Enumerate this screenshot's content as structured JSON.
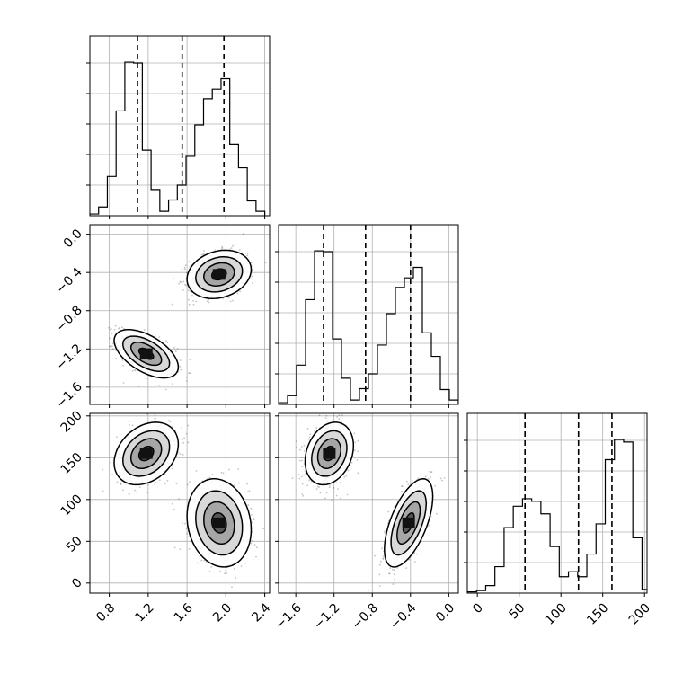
{
  "chart_data": {
    "type": "corner",
    "grid": true,
    "params": [
      {
        "id": "p1",
        "range": [
          0.6,
          2.45
        ],
        "ticks": [
          "0.8",
          "1.2",
          "1.6",
          "2.0",
          "2.4"
        ],
        "tick_values": [
          0.8,
          1.2,
          1.6,
          2.0,
          2.4
        ]
      },
      {
        "id": "p2",
        "range": [
          -1.78,
          0.1
        ],
        "ticks": [
          "−1.6",
          "−1.2",
          "−0.8",
          "−0.4",
          "0.0"
        ],
        "tick_values": [
          -1.6,
          -1.2,
          -0.8,
          -0.4,
          0.0
        ]
      },
      {
        "id": "p3",
        "range": [
          -12,
          203
        ],
        "ticks": [
          "0",
          "50",
          "100",
          "150",
          "200"
        ],
        "tick_values": [
          0,
          50,
          100,
          150,
          200
        ]
      }
    ],
    "histograms": [
      {
        "param": "p1",
        "bins": [
          0.6,
          0.69,
          0.78,
          0.87,
          0.96,
          1.05,
          1.14,
          1.23,
          1.32,
          1.41,
          1.5,
          1.59,
          1.68,
          1.77,
          1.86,
          1.95,
          2.04,
          2.13,
          2.22,
          2.31,
          2.4
        ],
        "counts": [
          2,
          10,
          45,
          120,
          176,
          175,
          75,
          30,
          5,
          18,
          35,
          68,
          104,
          134,
          145,
          157,
          82,
          55,
          17,
          5
        ],
        "quantiles": [
          1.09,
          1.55,
          1.98
        ]
      },
      {
        "param": "p2",
        "bins": [
          -1.78,
          -1.686,
          -1.592,
          -1.498,
          -1.404,
          -1.31,
          -1.216,
          -1.122,
          -1.028,
          -0.934,
          -0.84,
          -0.746,
          -0.652,
          -0.558,
          -0.464,
          -0.37,
          -0.276,
          -0.182,
          -0.088,
          0.006,
          0.1
        ],
        "counts": [
          2,
          10,
          45,
          120,
          176,
          175,
          75,
          30,
          5,
          18,
          35,
          68,
          104,
          134,
          145,
          157,
          82,
          55,
          17,
          5
        ],
        "quantiles": [
          -1.31,
          -0.87,
          -0.4
        ]
      },
      {
        "param": "p3",
        "bins": [
          -12,
          -1,
          10,
          21,
          32,
          43,
          54,
          65,
          76,
          87,
          98,
          109,
          120,
          131,
          142,
          153,
          164,
          175,
          186,
          197,
          208
        ],
        "counts": [
          1,
          2,
          6,
          21,
          52,
          69,
          75,
          73,
          63,
          37,
          13,
          17,
          13,
          31,
          55,
          106,
          122,
          120,
          44,
          3
        ],
        "quantiles": [
          57,
          121,
          161
        ]
      }
    ],
    "modes": [
      {
        "center": [
          1.18,
          -1.25,
          155
        ],
        "sd": [
          0.15,
          0.115,
          17
        ],
        "corr": {
          "p1_p2": -0.55,
          "p1_p3": 0.3,
          "p2_p3": 0.25
        }
      },
      {
        "center": [
          1.93,
          -0.42,
          72
        ],
        "sd": [
          0.15,
          0.115,
          24
        ],
        "corr": {
          "p1_p2": 0.2,
          "p1_p3": -0.15,
          "p2_p3": 0.6
        }
      }
    ]
  }
}
